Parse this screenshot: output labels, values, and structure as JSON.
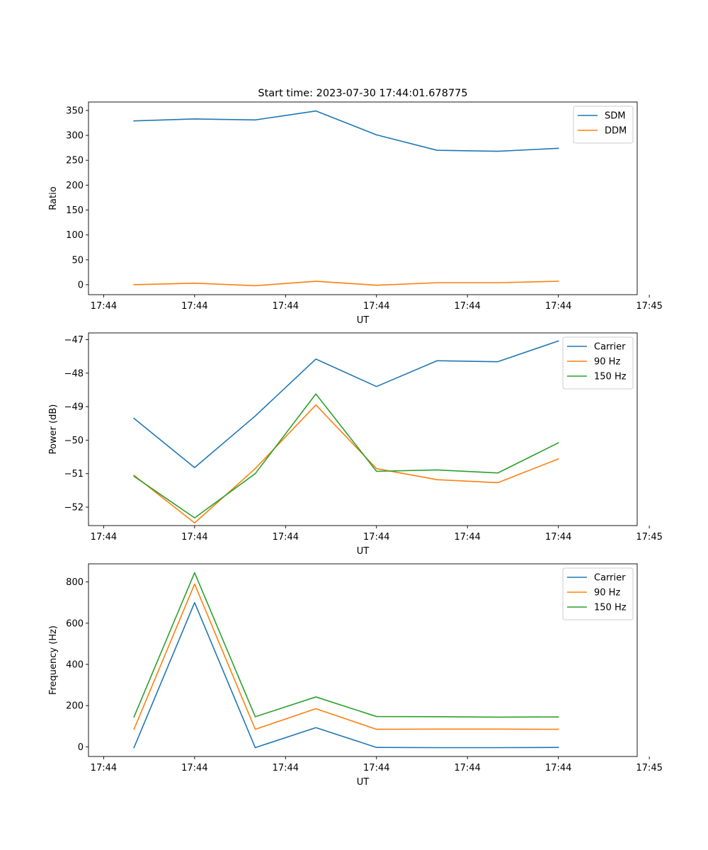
{
  "chart_data": [
    {
      "type": "line",
      "title": "Start time: 2023-07-30 17:44:01.678775",
      "xlabel": "UT",
      "ylabel": "Ratio",
      "x": [
        0,
        1,
        2,
        3,
        4,
        5,
        6,
        7
      ],
      "xlim": [
        -0.75,
        8.3
      ],
      "xticks": [
        -0.5,
        1,
        2.5,
        4,
        5.5,
        7,
        8.5
      ],
      "xtick_labels": [
        "17:44",
        "17:44",
        "17:44",
        "17:44",
        "17:44",
        "17:44",
        "17:45"
      ],
      "ylim": [
        -20,
        367
      ],
      "yticks": [
        0,
        50,
        100,
        150,
        200,
        250,
        300,
        350
      ],
      "legend": "top-right",
      "series": [
        {
          "name": "SDM",
          "color": "#1f77b4",
          "values": [
            329,
            333,
            331,
            349,
            301,
            270,
            268,
            274
          ]
        },
        {
          "name": "DDM",
          "color": "#ff7f0e",
          "values": [
            0,
            3,
            -2,
            7,
            -1,
            4,
            4,
            7
          ]
        }
      ]
    },
    {
      "type": "line",
      "title": "",
      "xlabel": "UT",
      "ylabel": "Power (dB)",
      "x": [
        0,
        1,
        2,
        3,
        4,
        5,
        6,
        7
      ],
      "xlim": [
        -0.75,
        8.3
      ],
      "xticks": [
        -0.5,
        1,
        2.5,
        4,
        5.5,
        7,
        8.5
      ],
      "xtick_labels": [
        "17:44",
        "17:44",
        "17:44",
        "17:44",
        "17:44",
        "17:44",
        "17:45"
      ],
      "ylim": [
        -52.55,
        -46.8
      ],
      "yticks": [
        -52,
        -51,
        -50,
        -49,
        -48,
        -47
      ],
      "ytick_labels": [
        "−52",
        "−51",
        "−50",
        "−49",
        "−48",
        "−47"
      ],
      "legend": "top-right",
      "series": [
        {
          "name": "Carrier",
          "color": "#1f77b4",
          "values": [
            -49.35,
            -50.82,
            -49.28,
            -47.58,
            -48.4,
            -47.63,
            -47.66,
            -47.04
          ]
        },
        {
          "name": "90 Hz",
          "color": "#ff7f0e",
          "values": [
            -51.05,
            -52.47,
            -50.85,
            -48.95,
            -50.85,
            -51.18,
            -51.27,
            -50.56
          ]
        },
        {
          "name": "150 Hz",
          "color": "#2ca02c",
          "values": [
            -51.08,
            -52.32,
            -51.0,
            -48.62,
            -50.93,
            -50.89,
            -50.98,
            -50.08
          ]
        }
      ]
    },
    {
      "type": "line",
      "title": "",
      "xlabel": "UT",
      "ylabel": "Frequency (Hz)",
      "x": [
        0,
        1,
        2,
        3,
        4,
        5,
        6,
        7
      ],
      "xlim": [
        -0.75,
        8.3
      ],
      "xticks": [
        -0.5,
        1,
        2.5,
        4,
        5.5,
        7,
        8.5
      ],
      "xtick_labels": [
        "17:44",
        "17:44",
        "17:44",
        "17:44",
        "17:44",
        "17:44",
        "17:45"
      ],
      "ylim": [
        -47,
        888
      ],
      "yticks": [
        0,
        200,
        400,
        600,
        800
      ],
      "legend": "top-right",
      "series": [
        {
          "name": "Carrier",
          "color": "#1f77b4",
          "values": [
            -4,
            700,
            -4,
            93,
            -3,
            -4,
            -4,
            -3
          ]
        },
        {
          "name": "90 Hz",
          "color": "#ff7f0e",
          "values": [
            85,
            790,
            85,
            185,
            85,
            86,
            86,
            85
          ]
        },
        {
          "name": "150 Hz",
          "color": "#2ca02c",
          "values": [
            145,
            845,
            146,
            242,
            147,
            146,
            144,
            145
          ]
        }
      ]
    }
  ]
}
